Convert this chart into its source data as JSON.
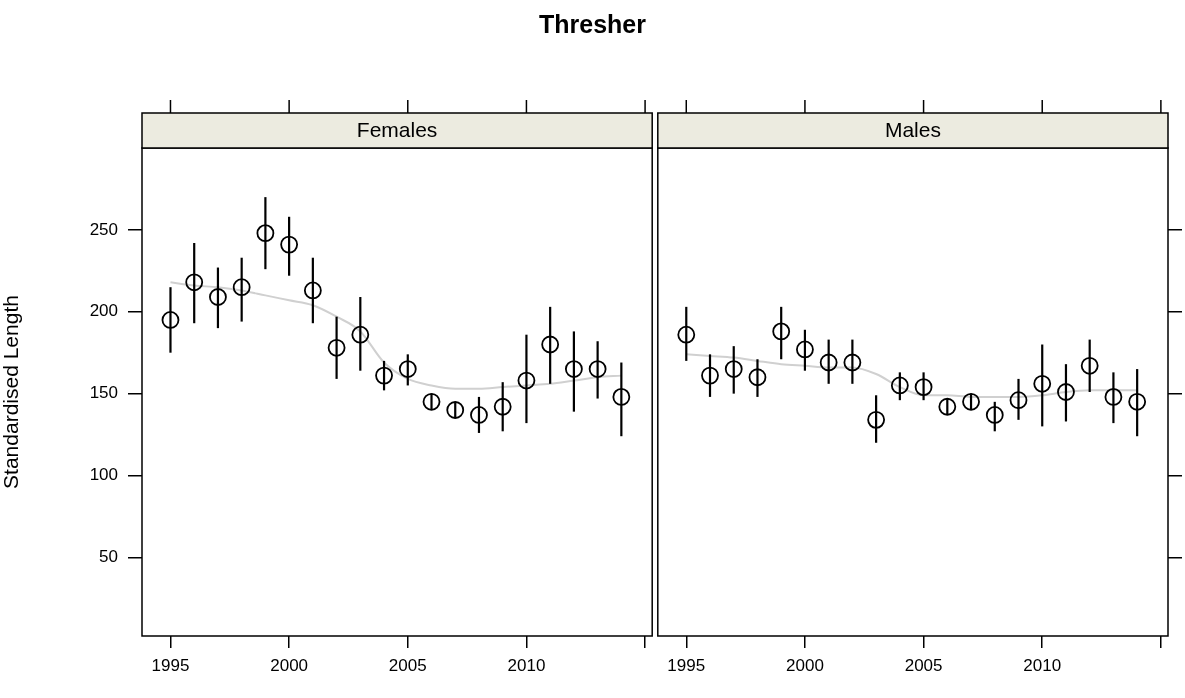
{
  "chart_data": [
    {
      "type": "scatter",
      "subtitle": "Thresher",
      "title": "Females",
      "ylabel": "Standardised Length",
      "xlim": [
        1993.8,
        2015.3
      ],
      "xticks": [
        1995,
        2000,
        2005,
        2010,
        {
          "value": 2015,
          "label": null
        }
      ],
      "ylim": [
        2,
        300
      ],
      "yticks": [
        50,
        100,
        150,
        200,
        250
      ],
      "grid": false,
      "legend": false,
      "marker": "circle",
      "series": [
        {
          "color": "#000000",
          "x": [
            1995,
            1996,
            1997,
            1998,
            1999,
            2000,
            2001,
            2002,
            2003,
            2004,
            2005,
            2006,
            2007,
            2008,
            2009,
            2010,
            2011,
            2012,
            2013,
            2014
          ],
          "values": [
            195,
            218,
            209,
            215,
            248,
            241,
            213,
            178,
            186,
            161,
            165,
            145,
            140,
            137,
            142,
            158,
            180,
            165,
            165,
            148
          ],
          "errors": [
            [
              175,
              215
            ],
            [
              193,
              242
            ],
            [
              190,
              227
            ],
            [
              194,
              233
            ],
            [
              226,
              270
            ],
            [
              222,
              258
            ],
            [
              193,
              233
            ],
            [
              159,
              197
            ],
            [
              164,
              209
            ],
            [
              152,
              170
            ],
            [
              155,
              174
            ],
            [
              140,
              150
            ],
            [
              135,
              145
            ],
            [
              126,
              148
            ],
            [
              127,
              157
            ],
            [
              132,
              186
            ],
            [
              156,
              203
            ],
            [
              139,
              188
            ],
            [
              147,
              182
            ],
            [
              124,
              169
            ]
          ]
        },
        {
          "type": "line",
          "color": "#d0d0d0",
          "marker": "none",
          "x": [
            1995,
            1996,
            1997,
            1998,
            1999,
            2000,
            2001,
            2002,
            2003,
            2004,
            2005,
            2006,
            2007,
            2008,
            2009,
            2010,
            2011,
            2012,
            2013,
            2014
          ],
          "values": [
            218,
            216,
            215,
            213,
            210,
            207,
            204,
            197,
            188,
            169,
            159,
            155,
            153,
            153,
            154,
            155,
            156,
            158,
            160,
            161
          ]
        }
      ]
    },
    {
      "type": "scatter",
      "title": "Males",
      "xlim": [
        1993.8,
        2015.3
      ],
      "xticks": [
        1995,
        2000,
        2005,
        2010,
        {
          "value": 2015,
          "label": null
        }
      ],
      "ylim": [
        2,
        300
      ],
      "yticks": [
        50,
        100,
        150,
        200,
        250
      ],
      "grid": false,
      "legend": false,
      "marker": "circle",
      "tick_labels": "x",
      "series": [
        {
          "color": "#000000",
          "x": [
            1995,
            1996,
            1997,
            1998,
            1999,
            2000,
            2001,
            2002,
            2003,
            2004,
            2005,
            2006,
            2007,
            2008,
            2009,
            2010,
            2011,
            2012,
            2013,
            2014
          ],
          "values": [
            186,
            161,
            165,
            160,
            188,
            177,
            169,
            169,
            134,
            155,
            154,
            142,
            145,
            137,
            146,
            156,
            151,
            167,
            148,
            145
          ],
          "errors": [
            [
              170,
              203
            ],
            [
              148,
              174
            ],
            [
              150,
              179
            ],
            [
              148,
              171
            ],
            [
              171,
              203
            ],
            [
              164,
              189
            ],
            [
              156,
              183
            ],
            [
              156,
              183
            ],
            [
              120,
              149
            ],
            [
              146,
              163
            ],
            [
              146,
              163
            ],
            [
              137,
              147
            ],
            [
              140,
              150
            ],
            [
              127,
              145
            ],
            [
              134,
              159
            ],
            [
              130,
              180
            ],
            [
              133,
              168
            ],
            [
              151,
              183
            ],
            [
              132,
              163
            ],
            [
              124,
              165
            ]
          ]
        },
        {
          "type": "line",
          "color": "#d0d0d0",
          "marker": "none",
          "x": [
            1995,
            1996,
            1997,
            1998,
            1999,
            2000,
            2001,
            2002,
            2003,
            2004,
            2005,
            2006,
            2007,
            2008,
            2009,
            2010,
            2011,
            2012,
            2013,
            2014
          ],
          "values": [
            174,
            173,
            172,
            170,
            168,
            167,
            166,
            166,
            162,
            154,
            149,
            149,
            148,
            148,
            148,
            149,
            151,
            152,
            152,
            152
          ]
        }
      ]
    }
  ]
}
